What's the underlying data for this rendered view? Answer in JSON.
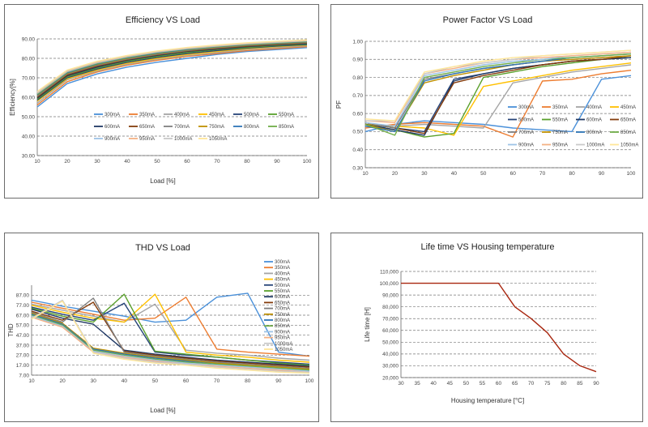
{
  "chart_data": [
    {
      "type": "line",
      "title": "Efficiency VS Load",
      "xlabel": "Load [%]",
      "ylabel": "Efficiency[%]",
      "xlim": [
        10,
        100
      ],
      "ylim": [
        30,
        90
      ],
      "xticks": [
        "10",
        "20",
        "30",
        "40",
        "50",
        "60",
        "70",
        "80",
        "90",
        "100"
      ],
      "yticks": [
        "30.00",
        "40.00",
        "50.00",
        "60.00",
        "70.00",
        "80.00",
        "90.00"
      ],
      "grid": "horizontal dashed",
      "legend_position": "inside bottom-right",
      "x": [
        10,
        20,
        30,
        40,
        50,
        60,
        70,
        80,
        90,
        100
      ],
      "series": [
        {
          "name": "300mA",
          "color": "#4a90d9",
          "values": [
            55,
            67,
            72,
            75.5,
            78,
            80,
            82,
            83.5,
            84.5,
            85.5
          ]
        },
        {
          "name": "350mA",
          "color": "#ed7d31",
          "values": [
            56,
            68,
            73,
            76.5,
            79,
            81,
            82.5,
            84,
            85,
            86
          ]
        },
        {
          "name": "400mA",
          "color": "#a5a5a5",
          "values": [
            57,
            69,
            73.5,
            77,
            79.5,
            81.5,
            83,
            84.5,
            85.5,
            86.5
          ]
        },
        {
          "name": "450mA",
          "color": "#ffc000",
          "values": [
            58,
            69.5,
            74,
            77.5,
            80,
            82,
            83.5,
            85,
            86,
            86.8
          ]
        },
        {
          "name": "500mA",
          "color": "#264478",
          "values": [
            58.5,
            70,
            74.5,
            78,
            80.5,
            82.5,
            84,
            85.3,
            86.3,
            87
          ]
        },
        {
          "name": "550mA",
          "color": "#5aa02c",
          "values": [
            59,
            70.5,
            75,
            78.5,
            81,
            83,
            84.5,
            85.6,
            86.6,
            87.3
          ]
        },
        {
          "name": "600mA",
          "color": "#1f3864",
          "values": [
            59.5,
            71,
            75.5,
            79,
            81.5,
            83.5,
            84.8,
            86,
            86.9,
            87.6
          ]
        },
        {
          "name": "650mA",
          "color": "#843c0c",
          "values": [
            60,
            71.5,
            76,
            79.3,
            81.8,
            83.8,
            85.1,
            86.3,
            87.2,
            87.9
          ]
        },
        {
          "name": "700mA",
          "color": "#7f7f7f",
          "values": [
            60.5,
            72,
            76.4,
            79.6,
            82.1,
            84,
            85.4,
            86.6,
            87.4,
            88.1
          ]
        },
        {
          "name": "750mA",
          "color": "#bf9000",
          "values": [
            61,
            72.3,
            76.8,
            79.9,
            82.4,
            84.3,
            85.7,
            86.8,
            87.6,
            88.3
          ]
        },
        {
          "name": "800mA",
          "color": "#2e75b6",
          "values": [
            61.3,
            72.6,
            77.1,
            80.2,
            82.7,
            84.5,
            85.9,
            87,
            87.8,
            88.5
          ]
        },
        {
          "name": "850mA",
          "color": "#70ad47",
          "values": [
            61.6,
            72.9,
            77.4,
            80.5,
            83,
            84.8,
            86.1,
            87.2,
            88,
            88.7
          ]
        },
        {
          "name": "900mA",
          "color": "#9dc3e6",
          "values": [
            62,
            73.2,
            77.7,
            80.8,
            83.2,
            85,
            86.3,
            87.4,
            88.2,
            88.9
          ]
        },
        {
          "name": "950mA",
          "color": "#f4b183",
          "values": [
            62.3,
            73.5,
            78,
            81,
            83.4,
            85.2,
            86.5,
            87.6,
            88.4,
            89.1
          ]
        },
        {
          "name": "1000mA",
          "color": "#c9c9c9",
          "values": [
            62.6,
            73.8,
            78.3,
            81.3,
            83.6,
            85.4,
            86.7,
            87.8,
            88.6,
            89.3
          ]
        },
        {
          "name": "1050mA",
          "color": "#ffe699",
          "values": [
            63,
            74,
            78.5,
            81.5,
            83.8,
            85.6,
            86.9,
            88,
            88.8,
            89.5
          ]
        }
      ]
    },
    {
      "type": "line",
      "title": "Power Factor VS Load",
      "xlabel": "",
      "ylabel": "PF",
      "xlim": [
        10,
        100
      ],
      "ylim": [
        0.3,
        1.0
      ],
      "xticks": [
        "10",
        "20",
        "30",
        "40",
        "50",
        "60",
        "70",
        "80",
        "90",
        "100"
      ],
      "yticks": [
        "0.30",
        "0.40",
        "0.50",
        "0.60",
        "0.70",
        "0.80",
        "0.90",
        "1.00"
      ],
      "grid": "horizontal dashed",
      "legend_position": "inside center-right",
      "x": [
        10,
        20,
        30,
        40,
        50,
        60,
        70,
        80,
        90,
        100
      ],
      "series": [
        {
          "name": "300mA",
          "color": "#4a90d9",
          "values": [
            0.5,
            0.54,
            0.56,
            0.55,
            0.54,
            0.52,
            0.51,
            0.5,
            0.79,
            0.81
          ]
        },
        {
          "name": "350mA",
          "color": "#ed7d31",
          "values": [
            0.52,
            0.54,
            0.55,
            0.54,
            0.53,
            0.47,
            0.78,
            0.79,
            0.82,
            0.84
          ]
        },
        {
          "name": "400mA",
          "color": "#a5a5a5",
          "values": [
            0.53,
            0.53,
            0.54,
            0.53,
            0.52,
            0.77,
            0.8,
            0.83,
            0.85,
            0.87
          ]
        },
        {
          "name": "450mA",
          "color": "#ffc000",
          "values": [
            0.54,
            0.53,
            0.52,
            0.48,
            0.75,
            0.78,
            0.81,
            0.84,
            0.86,
            0.88
          ]
        },
        {
          "name": "500mA",
          "color": "#264478",
          "values": [
            0.55,
            0.52,
            0.5,
            0.79,
            0.82,
            0.85,
            0.87,
            0.89,
            0.9,
            0.91
          ]
        },
        {
          "name": "550mA",
          "color": "#5aa02c",
          "values": [
            0.54,
            0.51,
            0.47,
            0.49,
            0.8,
            0.83,
            0.86,
            0.88,
            0.9,
            0.91
          ]
        },
        {
          "name": "600mA",
          "color": "#1f3864",
          "values": [
            0.54,
            0.51,
            0.48,
            0.78,
            0.82,
            0.85,
            0.87,
            0.89,
            0.9,
            0.91
          ]
        },
        {
          "name": "650mA",
          "color": "#843c0c",
          "values": [
            0.55,
            0.52,
            0.49,
            0.77,
            0.81,
            0.84,
            0.87,
            0.89,
            0.9,
            0.92
          ]
        },
        {
          "name": "700mA",
          "color": "#7f7f7f",
          "values": [
            0.55,
            0.52,
            0.79,
            0.82,
            0.85,
            0.87,
            0.89,
            0.9,
            0.91,
            0.92
          ]
        },
        {
          "name": "750mA",
          "color": "#bf9000",
          "values": [
            0.54,
            0.5,
            0.77,
            0.81,
            0.84,
            0.87,
            0.89,
            0.9,
            0.91,
            0.92
          ]
        },
        {
          "name": "800mA",
          "color": "#2e75b6",
          "values": [
            0.53,
            0.5,
            0.78,
            0.82,
            0.85,
            0.87,
            0.89,
            0.91,
            0.92,
            0.93
          ]
        },
        {
          "name": "850mA",
          "color": "#70ad47",
          "values": [
            0.54,
            0.48,
            0.8,
            0.83,
            0.86,
            0.88,
            0.9,
            0.91,
            0.92,
            0.93
          ]
        },
        {
          "name": "900mA",
          "color": "#9dc3e6",
          "values": [
            0.55,
            0.53,
            0.81,
            0.84,
            0.87,
            0.89,
            0.9,
            0.92,
            0.93,
            0.94
          ]
        },
        {
          "name": "950mA",
          "color": "#f4b183",
          "values": [
            0.56,
            0.55,
            0.82,
            0.85,
            0.88,
            0.9,
            0.91,
            0.92,
            0.93,
            0.94
          ]
        },
        {
          "name": "1000mA",
          "color": "#c9c9c9",
          "values": [
            0.56,
            0.56,
            0.82,
            0.86,
            0.88,
            0.9,
            0.92,
            0.93,
            0.94,
            0.95
          ]
        },
        {
          "name": "1050mA",
          "color": "#ffe699",
          "values": [
            0.57,
            0.56,
            0.83,
            0.86,
            0.89,
            0.91,
            0.92,
            0.93,
            0.94,
            0.95
          ]
        }
      ]
    },
    {
      "type": "line",
      "title": "THD VS Load",
      "xlabel": "Load [%]",
      "ylabel": "THD",
      "xlim": [
        10,
        100
      ],
      "ylim": [
        7,
        97
      ],
      "xticks": [
        "10",
        "20",
        "30",
        "40",
        "50",
        "60",
        "70",
        "80",
        "90",
        "100"
      ],
      "yticks": [
        "7.00",
        "17.00",
        "27.00",
        "37.00",
        "47.00",
        "57.00",
        "67.00",
        "77.00",
        "87.00"
      ],
      "grid": "horizontal dashed",
      "legend_position": "right",
      "x": [
        10,
        20,
        30,
        40,
        50,
        60,
        70,
        80,
        90,
        100
      ],
      "series": [
        {
          "name": "300mA",
          "color": "#4a90d9",
          "values": [
            82,
            76,
            71,
            66,
            60,
            62,
            85,
            89,
            30,
            26
          ]
        },
        {
          "name": "350mA",
          "color": "#ed7d31",
          "values": [
            80,
            74,
            68,
            62,
            64,
            85,
            33,
            30,
            28,
            26
          ]
        },
        {
          "name": "400mA",
          "color": "#a5a5a5",
          "values": [
            78,
            72,
            66,
            60,
            78,
            32,
            29,
            27,
            24,
            22
          ]
        },
        {
          "name": "450mA",
          "color": "#ffc000",
          "values": [
            77,
            70,
            64,
            60,
            88,
            30,
            27,
            25,
            22,
            20
          ]
        },
        {
          "name": "500mA",
          "color": "#264478",
          "values": [
            75,
            68,
            62,
            79,
            30,
            27,
            25,
            22,
            20,
            18
          ]
        },
        {
          "name": "550mA",
          "color": "#5aa02c",
          "values": [
            74,
            66,
            60,
            88,
            31,
            28,
            25,
            22,
            19,
            17
          ]
        },
        {
          "name": "600mA",
          "color": "#1f3864",
          "values": [
            73,
            64,
            58,
            32,
            28,
            25,
            22,
            20,
            18,
            16
          ]
        },
        {
          "name": "650mA",
          "color": "#843c0c",
          "values": [
            71,
            62,
            80,
            31,
            27,
            24,
            21,
            19,
            17,
            15
          ]
        },
        {
          "name": "700mA",
          "color": "#7f7f7f",
          "values": [
            70,
            60,
            84,
            30,
            26,
            23,
            20,
            18,
            16,
            14
          ]
        },
        {
          "name": "750mA",
          "color": "#bf9000",
          "values": [
            69,
            59,
            34,
            29,
            25,
            22,
            19,
            17,
            15,
            13
          ]
        },
        {
          "name": "800mA",
          "color": "#2e75b6",
          "values": [
            68,
            58,
            33,
            28,
            24,
            21,
            18,
            16,
            14,
            12
          ]
        },
        {
          "name": "850mA",
          "color": "#70ad47",
          "values": [
            67,
            57,
            32,
            27,
            23,
            20,
            18,
            16,
            14,
            12
          ]
        },
        {
          "name": "900mA",
          "color": "#9dc3e6",
          "values": [
            66,
            56,
            31,
            26,
            22,
            19,
            17,
            15,
            13,
            11
          ]
        },
        {
          "name": "950mA",
          "color": "#f4b183",
          "values": [
            65,
            55,
            30,
            25,
            21,
            18,
            16,
            14,
            12,
            10
          ]
        },
        {
          "name": "1000mA",
          "color": "#c9c9c9",
          "values": [
            64,
            82,
            30,
            24,
            20,
            18,
            15,
            13,
            11,
            10
          ]
        },
        {
          "name": "1050mA",
          "color": "#ffe699",
          "values": [
            63,
            81,
            29,
            23,
            19,
            17,
            14,
            12,
            10,
            9
          ]
        }
      ]
    },
    {
      "type": "line",
      "title": "Life time VS Housing temperature",
      "xlabel": "Housing temperature [°C]",
      "ylabel": "Life time [H]",
      "xlim": [
        30,
        90
      ],
      "ylim": [
        20000,
        110000
      ],
      "xticks": [
        "30",
        "35",
        "40",
        "45",
        "50",
        "55",
        "60",
        "65",
        "70",
        "75",
        "80",
        "85",
        "90"
      ],
      "yticks": [
        "20,000",
        "30,000",
        "40,000",
        "50,000",
        "60,000",
        "70,000",
        "80,000",
        "90,000",
        "100,000",
        "110,000"
      ],
      "grid": "horizontal dashed",
      "x": [
        30,
        35,
        40,
        45,
        50,
        55,
        60,
        65,
        70,
        75,
        80,
        85,
        90
      ],
      "series": [
        {
          "name": "",
          "color": "#a8260f",
          "values": [
            100000,
            100000,
            100000,
            100000,
            100000,
            100000,
            100000,
            80000,
            70000,
            58000,
            40000,
            30000,
            25000
          ]
        }
      ]
    }
  ]
}
